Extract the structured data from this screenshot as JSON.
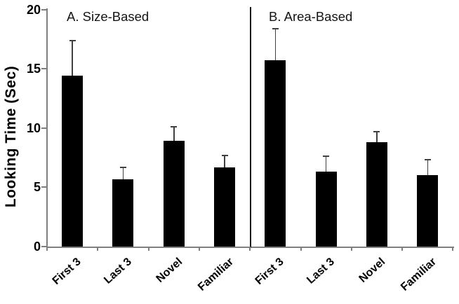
{
  "chart_data": {
    "type": "bar",
    "title": "",
    "ylabel": "Looking Time (Sec)",
    "xlabel": "",
    "ylim": [
      0,
      20
    ],
    "yticks": [
      0,
      5,
      10,
      15,
      20
    ],
    "categories": [
      "First 3",
      "Last 3",
      "Novel",
      "Familiar"
    ],
    "grid": false,
    "legend": false,
    "bar_color": "#000000",
    "error_bar_color": "#404040",
    "axis_color": "#7f7f7f",
    "divider_color": "#1a1a1a",
    "error_bars": "upper standard error caps",
    "panels": [
      {
        "label": "A. Size-Based",
        "values": [
          14.4,
          5.7,
          8.9,
          6.7
        ],
        "errors_up": [
          3.0,
          1.0,
          1.2,
          1.0
        ]
      },
      {
        "label": "B. Area-Based",
        "values": [
          15.7,
          6.3,
          8.8,
          6.0
        ],
        "errors_up": [
          2.7,
          1.3,
          0.9,
          1.3
        ]
      }
    ]
  }
}
